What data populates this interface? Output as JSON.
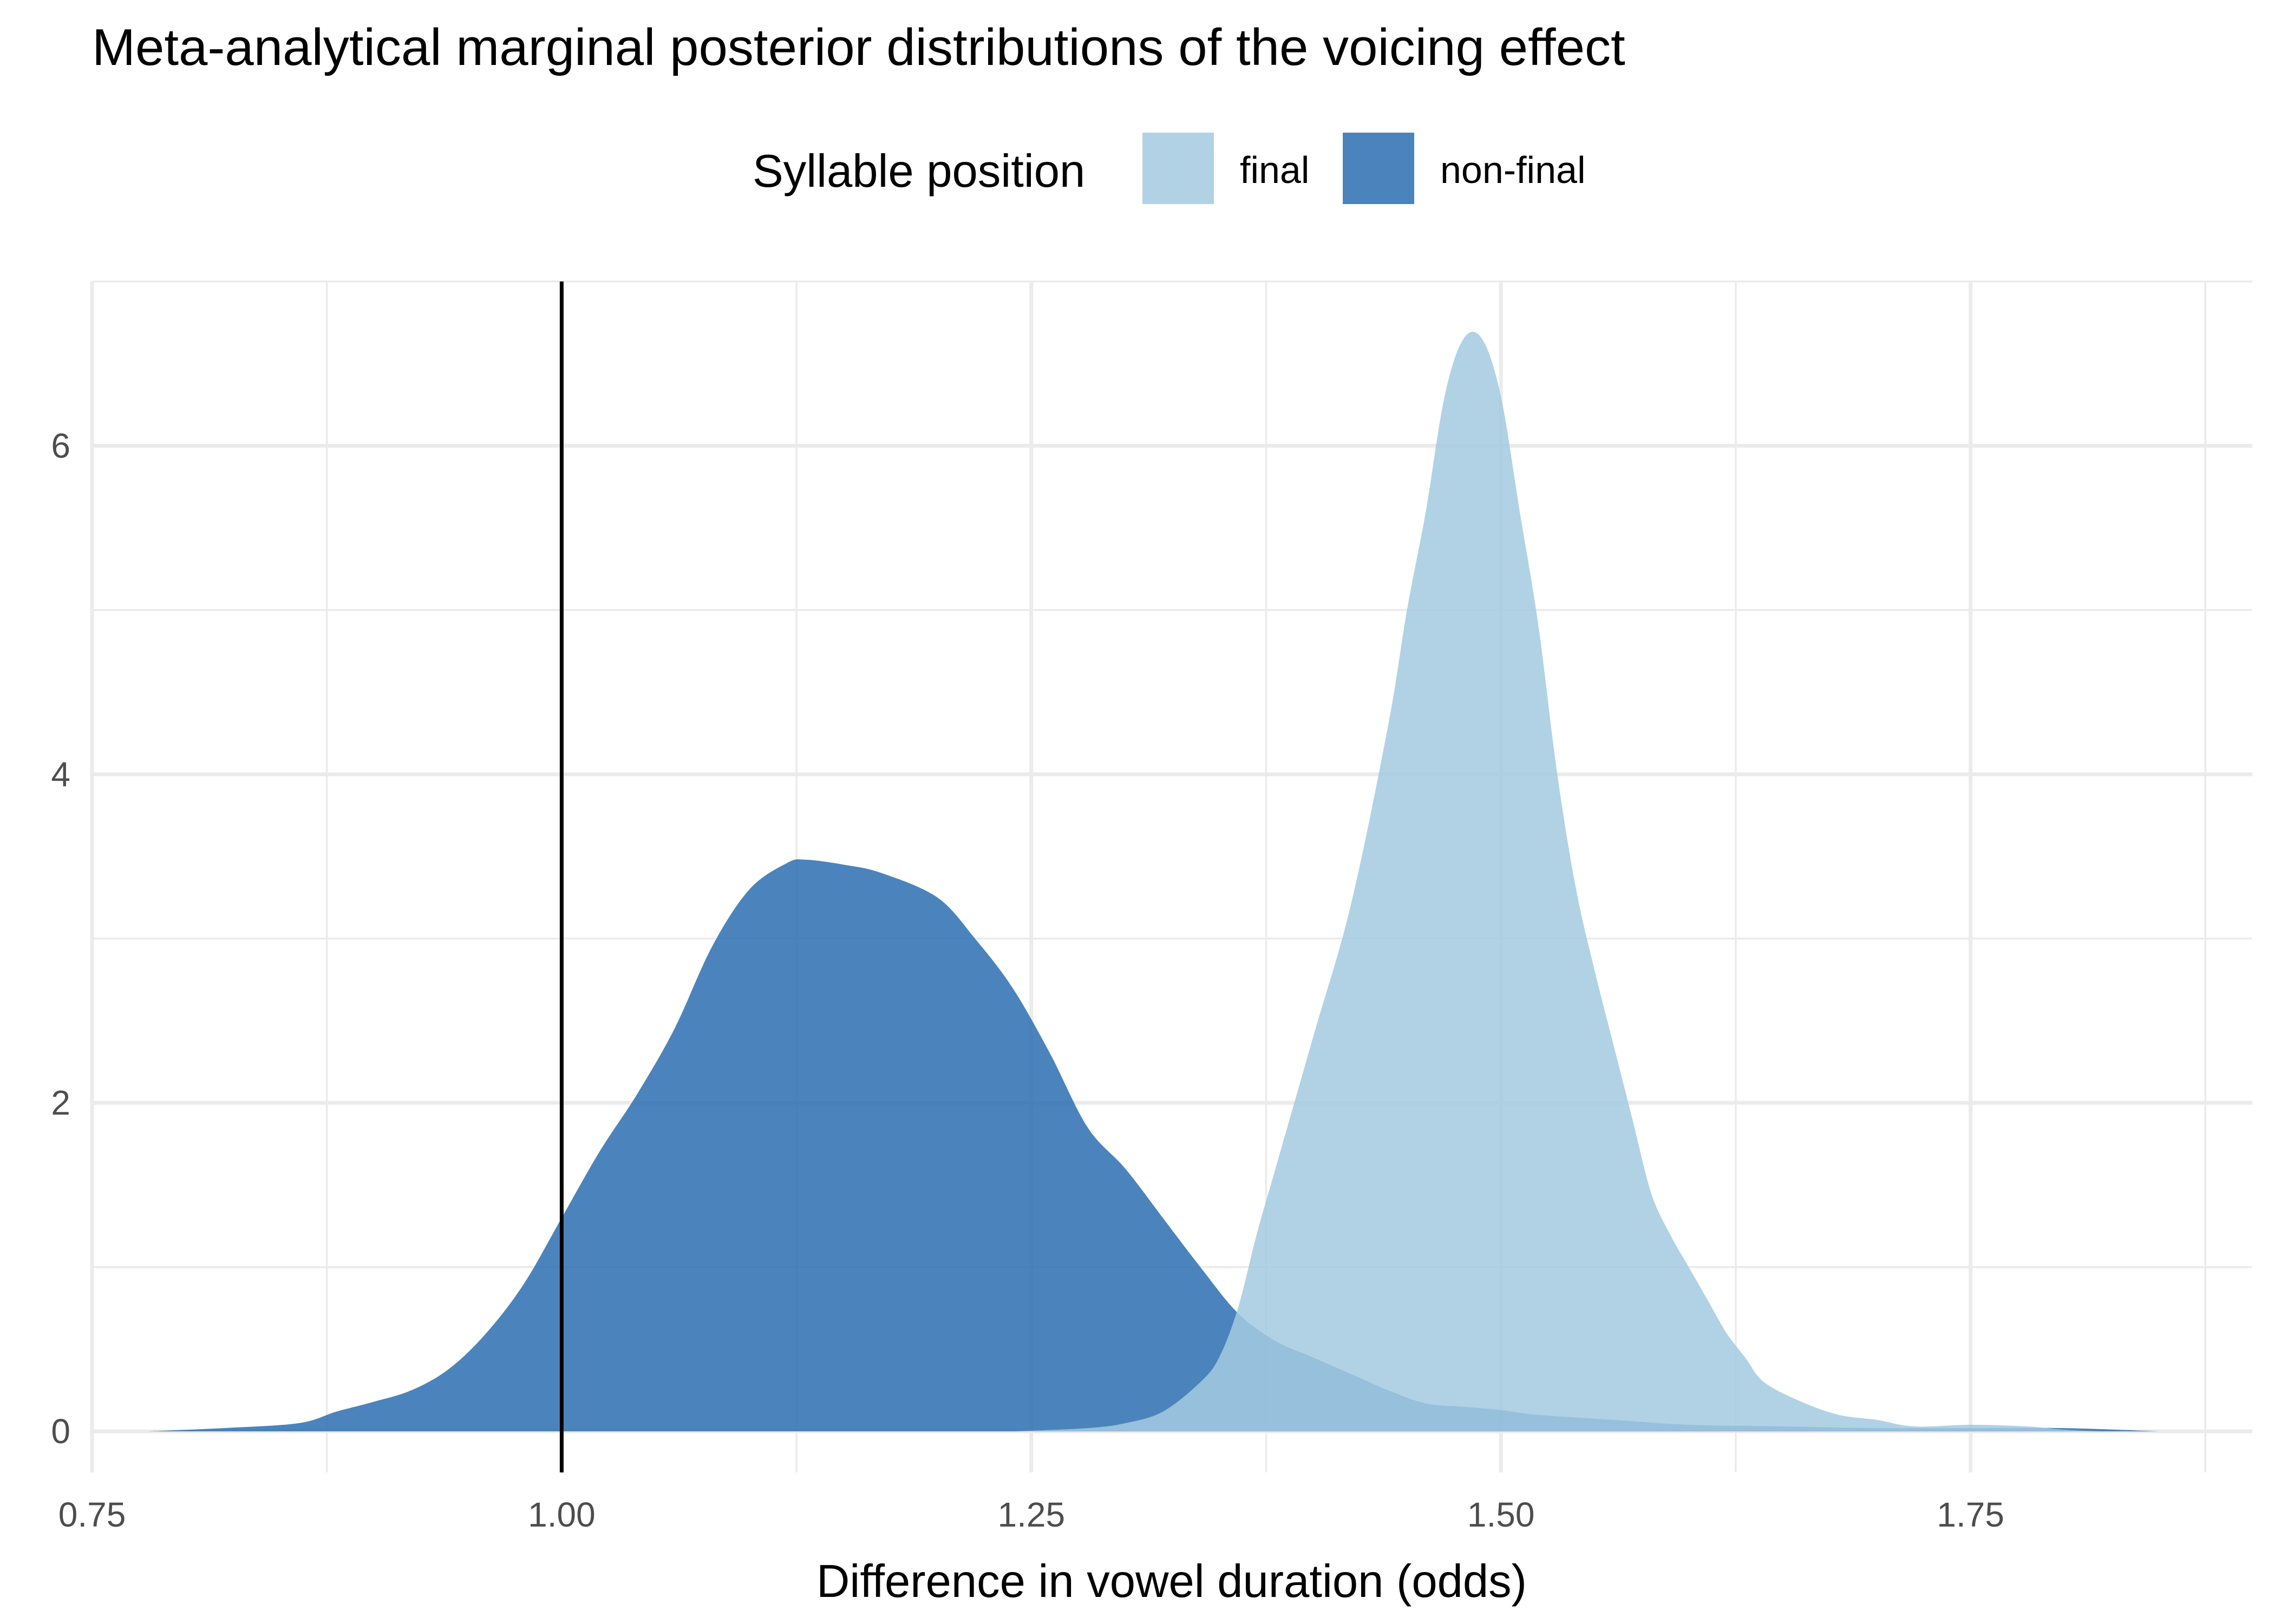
{
  "chart_data": {
    "type": "area",
    "title": "Meta-analytical marginal posterior distributions of the voicing effect",
    "xlabel": "Difference in vowel duration (odds)",
    "ylabel": "",
    "xlim": [
      0.75,
      1.9
    ],
    "ylim": [
      -0.25,
      7.0
    ],
    "x_ticks": [
      "0.75",
      "1.00",
      "1.25",
      "1.50",
      "1.75"
    ],
    "x_tick_values": [
      0.75,
      1.0,
      1.25,
      1.5,
      1.75
    ],
    "y_ticks": [
      "0",
      "2",
      "4",
      "6"
    ],
    "y_tick_values": [
      0,
      2,
      4,
      6
    ],
    "grid": true,
    "legend": {
      "title": "Syllable position",
      "placement": "top"
    },
    "reference_line": {
      "x": 1.0,
      "color": "#000000"
    },
    "series": [
      {
        "name": "non-final",
        "color": "#2b6fb0",
        "points": [
          [
            0.78,
            0.0
          ],
          [
            0.82,
            0.02
          ],
          [
            0.86,
            0.05
          ],
          [
            0.88,
            0.12
          ],
          [
            0.9,
            0.18
          ],
          [
            0.92,
            0.25
          ],
          [
            0.94,
            0.38
          ],
          [
            0.96,
            0.6
          ],
          [
            0.98,
            0.9
          ],
          [
            1.0,
            1.3
          ],
          [
            1.02,
            1.7
          ],
          [
            1.04,
            2.05
          ],
          [
            1.06,
            2.45
          ],
          [
            1.08,
            2.95
          ],
          [
            1.1,
            3.3
          ],
          [
            1.12,
            3.46
          ],
          [
            1.13,
            3.48
          ],
          [
            1.15,
            3.45
          ],
          [
            1.17,
            3.4
          ],
          [
            1.2,
            3.25
          ],
          [
            1.22,
            3.0
          ],
          [
            1.24,
            2.7
          ],
          [
            1.26,
            2.3
          ],
          [
            1.28,
            1.85
          ],
          [
            1.3,
            1.6
          ],
          [
            1.32,
            1.3
          ],
          [
            1.34,
            1.0
          ],
          [
            1.36,
            0.72
          ],
          [
            1.38,
            0.55
          ],
          [
            1.4,
            0.45
          ],
          [
            1.42,
            0.35
          ],
          [
            1.44,
            0.25
          ],
          [
            1.46,
            0.17
          ],
          [
            1.48,
            0.15
          ],
          [
            1.5,
            0.13
          ],
          [
            1.52,
            0.1
          ],
          [
            1.56,
            0.07
          ],
          [
            1.6,
            0.04
          ],
          [
            1.65,
            0.03
          ],
          [
            1.7,
            0.02
          ],
          [
            1.75,
            0.02
          ],
          [
            1.8,
            0.02
          ],
          [
            1.85,
            0.0
          ]
        ]
      },
      {
        "name": "final",
        "color": "#a3cae0",
        "points": [
          [
            1.24,
            0.0
          ],
          [
            1.28,
            0.02
          ],
          [
            1.3,
            0.05
          ],
          [
            1.32,
            0.12
          ],
          [
            1.34,
            0.3
          ],
          [
            1.35,
            0.45
          ],
          [
            1.36,
            0.75
          ],
          [
            1.37,
            1.2
          ],
          [
            1.38,
            1.6
          ],
          [
            1.4,
            2.4
          ],
          [
            1.42,
            3.2
          ],
          [
            1.44,
            4.3
          ],
          [
            1.45,
            5.0
          ],
          [
            1.46,
            5.6
          ],
          [
            1.47,
            6.3
          ],
          [
            1.48,
            6.65
          ],
          [
            1.49,
            6.65
          ],
          [
            1.5,
            6.3
          ],
          [
            1.51,
            5.6
          ],
          [
            1.52,
            4.9
          ],
          [
            1.53,
            4.0
          ],
          [
            1.54,
            3.3
          ],
          [
            1.55,
            2.8
          ],
          [
            1.56,
            2.35
          ],
          [
            1.57,
            1.9
          ],
          [
            1.58,
            1.45
          ],
          [
            1.59,
            1.2
          ],
          [
            1.6,
            1.0
          ],
          [
            1.61,
            0.8
          ],
          [
            1.62,
            0.6
          ],
          [
            1.63,
            0.45
          ],
          [
            1.64,
            0.3
          ],
          [
            1.66,
            0.18
          ],
          [
            1.68,
            0.1
          ],
          [
            1.7,
            0.07
          ],
          [
            1.72,
            0.03
          ],
          [
            1.75,
            0.04
          ],
          [
            1.78,
            0.03
          ],
          [
            1.8,
            0.01
          ],
          [
            1.82,
            0.0
          ]
        ]
      }
    ]
  }
}
